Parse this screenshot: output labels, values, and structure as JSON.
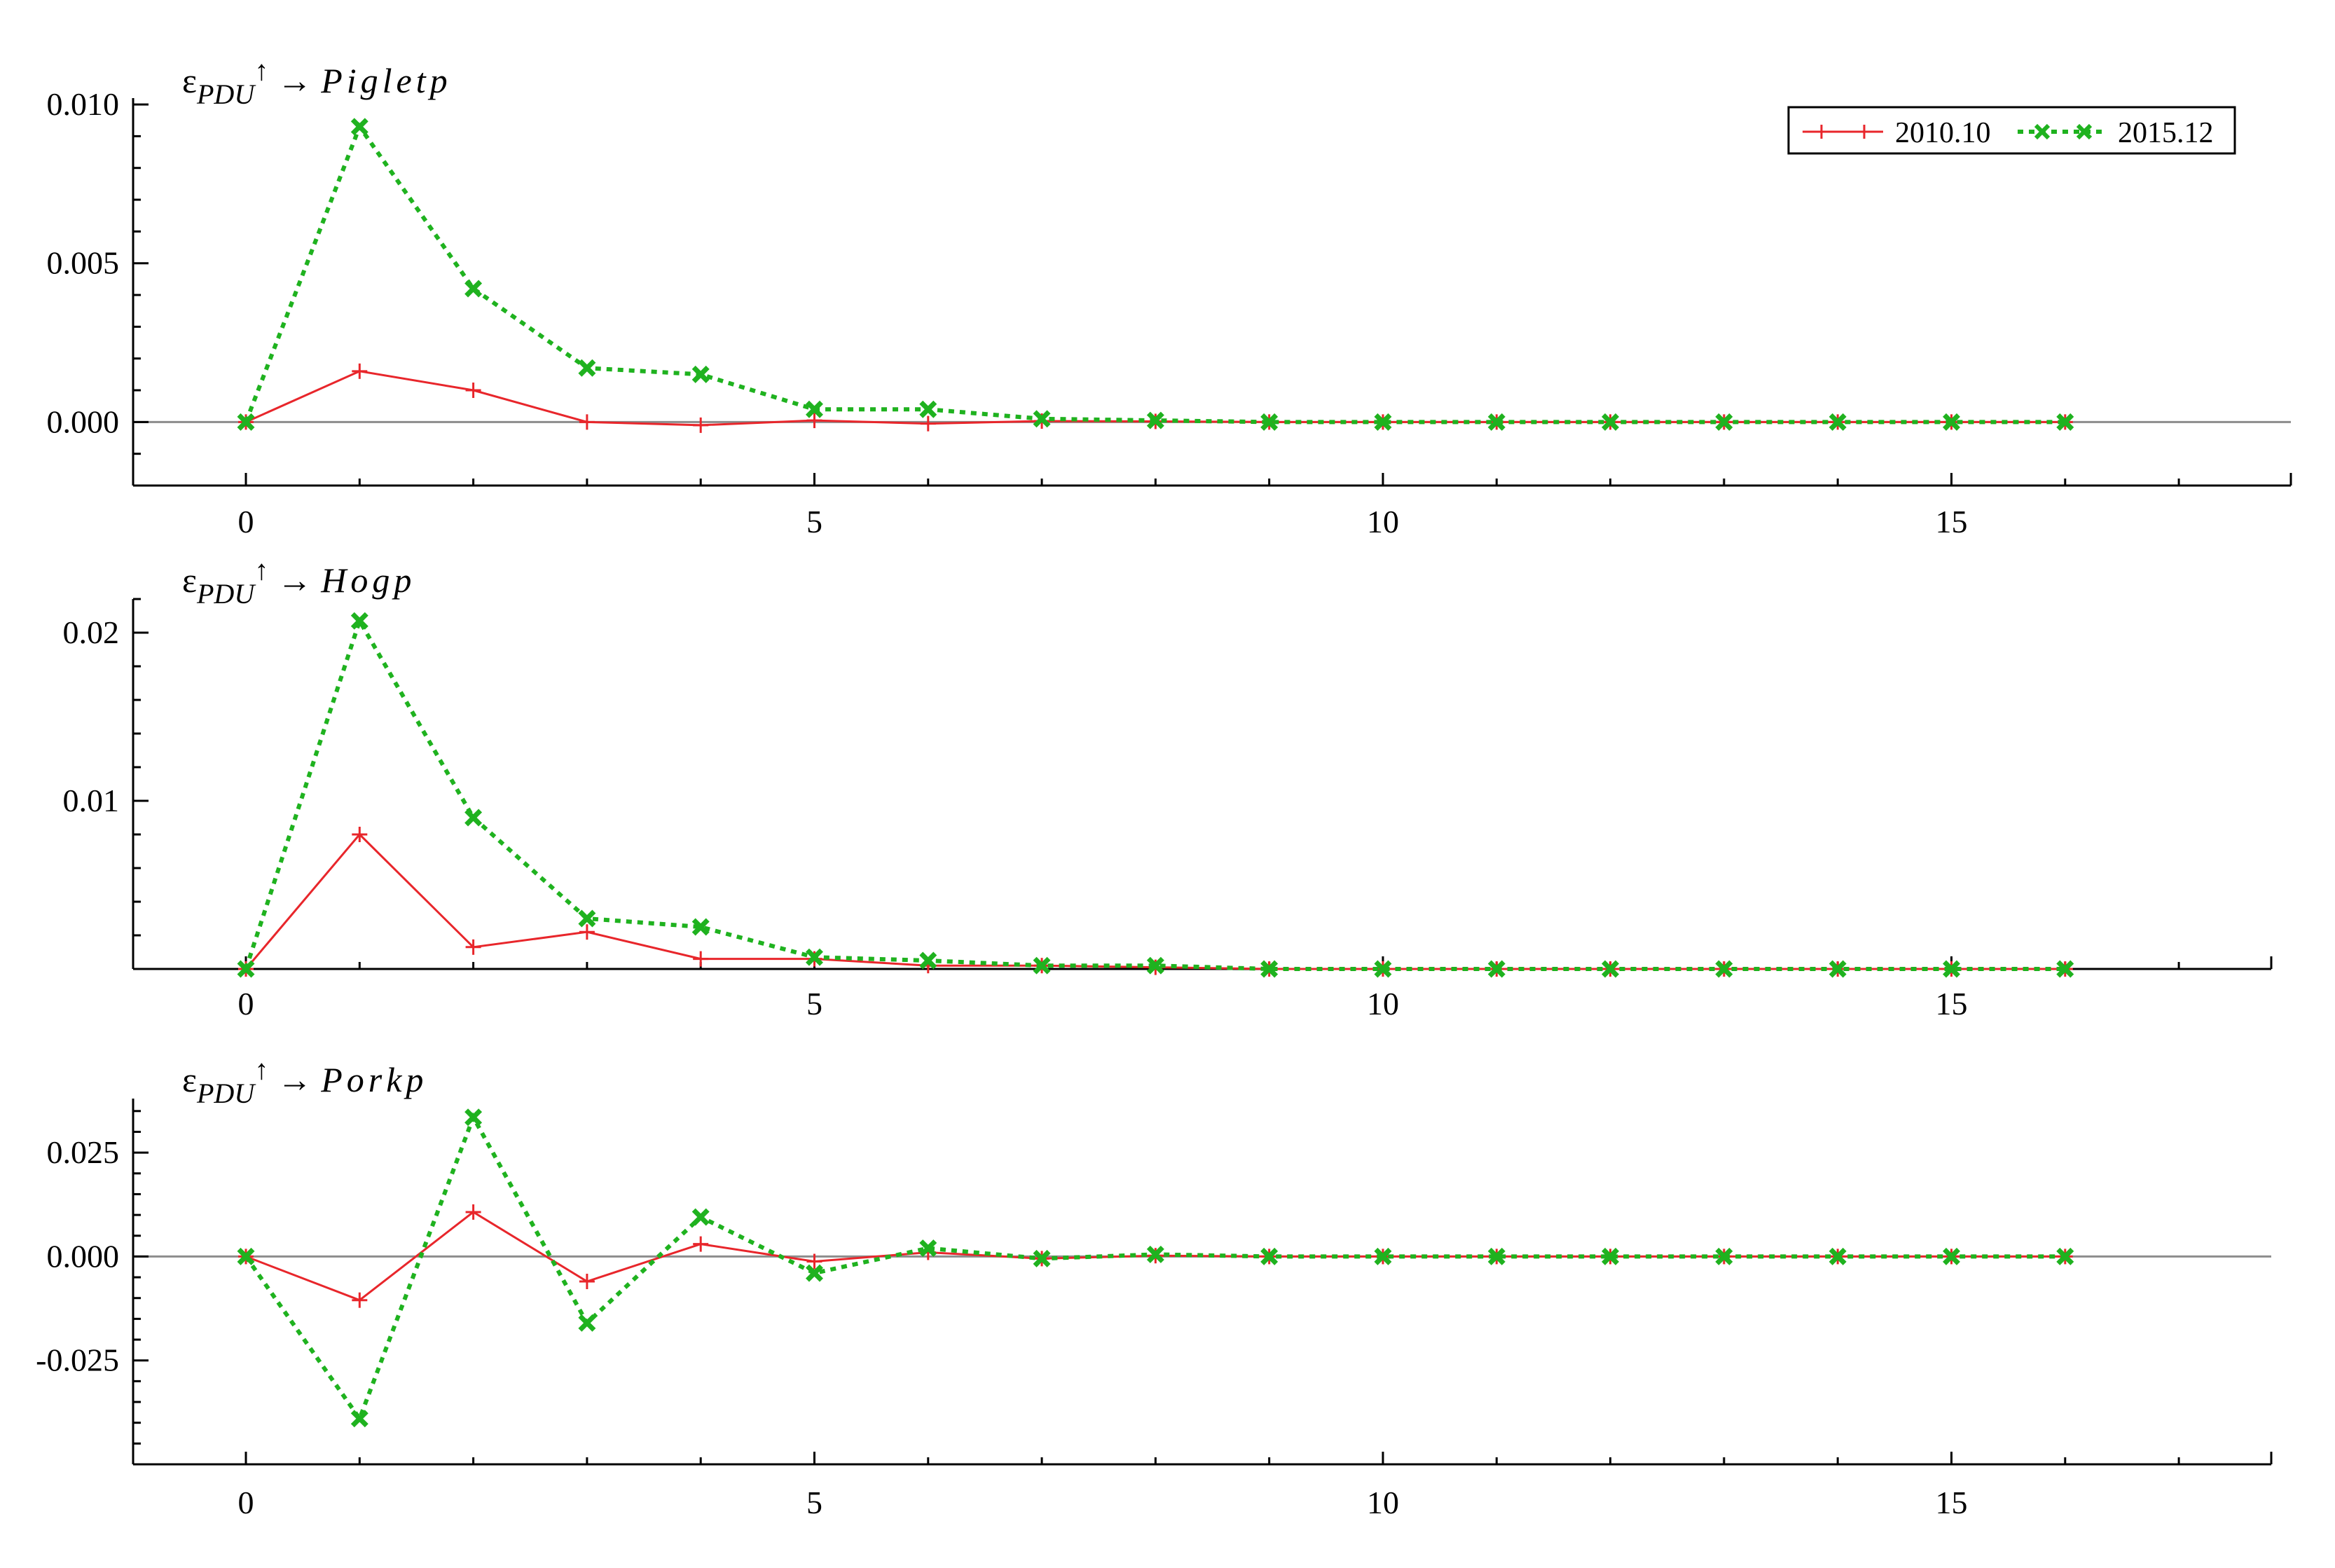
{
  "chart_data": [
    {
      "type": "line",
      "title": {
        "prefix": "ε",
        "subscript": "PDU",
        "superscript": "↑",
        "arrow": " → ",
        "variable": "Pigletp"
      },
      "x": [
        0,
        1,
        2,
        3,
        4,
        5,
        6,
        7,
        8,
        9,
        10,
        11,
        12,
        13,
        14,
        15,
        16
      ],
      "xlim": [
        -1,
        18
      ],
      "xticks": [
        "0",
        "5",
        "10",
        "15"
      ],
      "ylim": [
        -0.002,
        0.0102
      ],
      "yticks": [
        "0.000",
        "0.005",
        "0.010"
      ],
      "zero_line": true,
      "series": [
        {
          "name": "2010.10",
          "color": "#e8262b",
          "marker": "+",
          "values": [
            0,
            0.0016,
            0.001,
            0.0,
            -0.0001,
            5e-05,
            -5e-05,
            3e-05,
            2e-05,
            0,
            0,
            0,
            0,
            0,
            0,
            0,
            0
          ]
        },
        {
          "name": "2015.12",
          "color": "#1fb21f",
          "marker": "x",
          "dashed": true,
          "values": [
            0,
            0.0093,
            0.0042,
            0.0017,
            0.0015,
            0.0004,
            0.0004,
            0.0001,
            5e-05,
            0,
            0,
            0,
            0,
            0,
            0,
            0,
            0
          ]
        }
      ]
    },
    {
      "type": "line",
      "title": {
        "prefix": "ε",
        "subscript": "PDU",
        "superscript": "↑",
        "arrow": " → ",
        "variable": "Hogp"
      },
      "x": [
        0,
        1,
        2,
        3,
        4,
        5,
        6,
        7,
        8,
        9,
        10,
        11,
        12,
        13,
        14,
        15,
        16
      ],
      "xlim": [
        -1,
        18
      ],
      "xticks": [
        "0",
        "5",
        "10",
        "15"
      ],
      "ylim": [
        0,
        0.022
      ],
      "yticks": [
        "0.01",
        "0.02"
      ],
      "zero_line": false,
      "series": [
        {
          "name": "2010.10",
          "color": "#e8262b",
          "marker": "+",
          "values": [
            0,
            0.008,
            0.0013,
            0.0022,
            0.0006,
            0.0006,
            0.0002,
            0.0002,
            0.0001,
            0,
            0,
            0,
            0,
            0,
            0,
            0,
            0
          ]
        },
        {
          "name": "2015.12",
          "color": "#1fb21f",
          "marker": "x",
          "dashed": true,
          "values": [
            0,
            0.0207,
            0.009,
            0.003,
            0.0025,
            0.0007,
            0.0005,
            0.0002,
            0.0002,
            0,
            0,
            0,
            0,
            0,
            0,
            0,
            0
          ]
        }
      ]
    },
    {
      "type": "line",
      "title": {
        "prefix": "ε",
        "subscript": "PDU",
        "superscript": "↑",
        "arrow": " → ",
        "variable": "Porkp"
      },
      "x": [
        0,
        1,
        2,
        3,
        4,
        5,
        6,
        7,
        8,
        9,
        10,
        11,
        12,
        13,
        14,
        15,
        16
      ],
      "xlim": [
        -1,
        18
      ],
      "xticks": [
        "0",
        "5",
        "10",
        "15"
      ],
      "ylim": [
        -0.05,
        0.038
      ],
      "yticks": [
        "-0.025",
        "0.000",
        "0.025"
      ],
      "zero_line": true,
      "series": [
        {
          "name": "2010.10",
          "color": "#e8262b",
          "marker": "+",
          "values": [
            0,
            -0.0105,
            0.0107,
            -0.006,
            0.003,
            -0.0012,
            0.001,
            -0.0005,
            0.0002,
            0,
            0,
            0,
            0,
            0,
            0,
            0,
            0
          ]
        },
        {
          "name": "2015.12",
          "color": "#1fb21f",
          "marker": "x",
          "dashed": true,
          "values": [
            0,
            -0.039,
            0.0335,
            -0.016,
            0.0095,
            -0.004,
            0.002,
            -0.0005,
            0.0005,
            0,
            0,
            0,
            0,
            0,
            0,
            0,
            0
          ]
        }
      ]
    }
  ],
  "legend": {
    "placement": "top-right",
    "entries": [
      "2010.10",
      "2015.12"
    ]
  }
}
